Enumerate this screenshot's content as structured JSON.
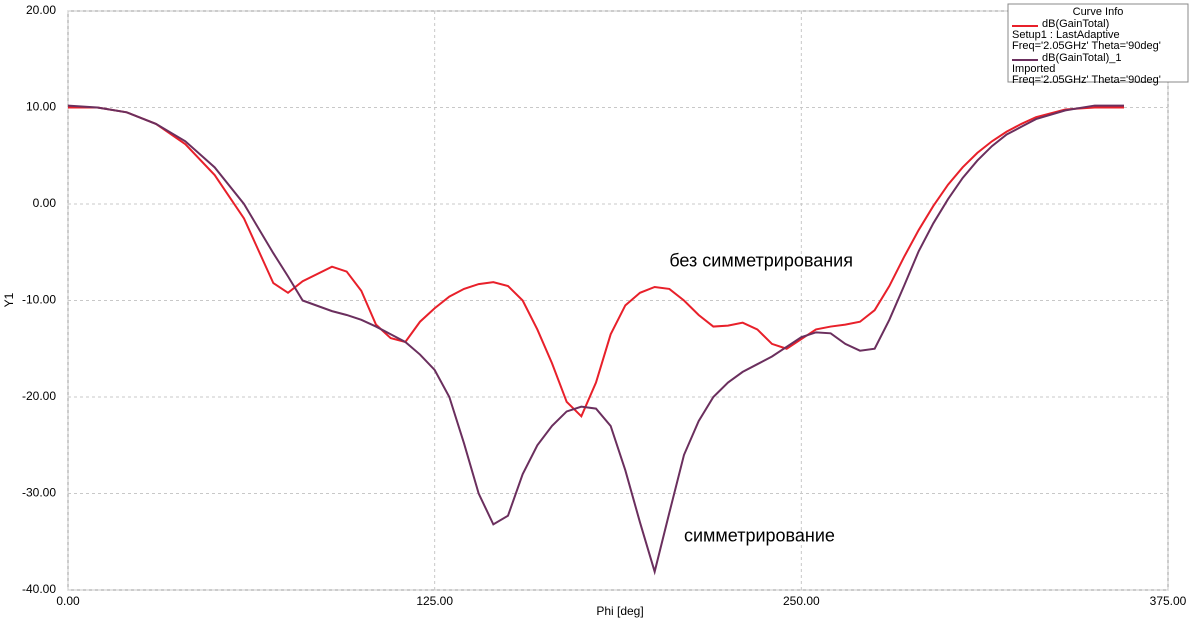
{
  "chart_data": {
    "type": "line",
    "xlabel": "Phi [deg]",
    "ylabel": "Y1",
    "x": [
      0,
      10,
      20,
      30,
      40,
      50,
      60,
      70,
      75,
      80,
      90,
      95,
      100,
      105,
      110,
      115,
      120,
      125,
      130,
      135,
      140,
      145,
      150,
      155,
      160,
      165,
      170,
      175,
      180,
      185,
      190,
      195,
      200,
      205,
      210,
      215,
      220,
      225,
      230,
      235,
      240,
      245,
      250,
      255,
      260,
      265,
      270,
      275,
      280,
      285,
      290,
      295,
      300,
      305,
      310,
      315,
      320,
      325,
      330,
      340,
      350,
      360
    ],
    "series": [
      {
        "name": "dB(GainTotal)",
        "details": [
          "Setup1 : LastAdaptive",
          "Freq='2.05GHz' Theta='90deg'"
        ],
        "color": "#e8202a",
        "values": [
          10,
          10,
          9.5,
          8.3,
          6.2,
          3.0,
          -1.5,
          -8.2,
          -9.2,
          -8.0,
          -6.5,
          -7.0,
          -9.0,
          -12.5,
          -13.9,
          -14.3,
          -12.2,
          -10.8,
          -9.6,
          -8.8,
          -8.3,
          -8.1,
          -8.5,
          -10,
          -13,
          -16.5,
          -20.5,
          -22,
          -18.5,
          -13.5,
          -10.5,
          -9.2,
          -8.6,
          -8.8,
          -10,
          -11.5,
          -12.7,
          -12.6,
          -12.3,
          -13,
          -14.5,
          -15,
          -14,
          -13,
          -12.7,
          -12.5,
          -12.2,
          -11,
          -8.5,
          -5.5,
          -2.7,
          -0.2,
          2,
          3.8,
          5.3,
          6.5,
          7.5,
          8.3,
          9,
          9.8,
          10,
          10
        ]
      },
      {
        "name": "dB(GainTotal)_1",
        "details": [
          "Imported",
          "Freq='2.05GHz' Theta='90deg'"
        ],
        "color": "#6b2f5e",
        "values": [
          10.2,
          10.0,
          9.5,
          8.3,
          6.5,
          3.8,
          0,
          -5.1,
          -7.5,
          -10.0,
          -11.1,
          -11.5,
          -12.0,
          -12.7,
          -13.5,
          -14.3,
          -15.6,
          -17.2,
          -20,
          -24.8,
          -30,
          -33.2,
          -32.3,
          -28,
          -25,
          -23,
          -21.5,
          -21,
          -21.2,
          -23,
          -27.6,
          -33,
          -38.1,
          -32,
          -26,
          -22.5,
          -20,
          -18.5,
          -17.4,
          -16.6,
          -15.8,
          -14.8,
          -13.8,
          -13.3,
          -13.4,
          -14.5,
          -15.2,
          -15,
          -12,
          -8.5,
          -4.9,
          -2,
          0.5,
          2.7,
          4.5,
          6,
          7.2,
          8,
          8.8,
          9.7,
          10.2,
          10.2
        ]
      }
    ],
    "legend_title": "Curve Info",
    "annotations": [
      {
        "text": "без симметрирования",
        "x": 205,
        "y": -6
      },
      {
        "text": "симметрирование",
        "x": 210,
        "y": -34.5
      }
    ],
    "xlim": [
      0,
      375
    ],
    "xticks": [
      {
        "value": 0,
        "label": "0.00"
      },
      {
        "value": 125,
        "label": "125.00"
      },
      {
        "value": 250,
        "label": "250.00"
      },
      {
        "value": 375,
        "label": "375.00"
      }
    ],
    "ylim": [
      -40,
      20
    ],
    "yticks": [
      {
        "value": 20,
        "label": "20.00"
      },
      {
        "value": 10,
        "label": "10.00"
      },
      {
        "value": 0,
        "label": "0.00"
      },
      {
        "value": -10,
        "label": "-10.00"
      },
      {
        "value": -20,
        "label": "-20.00"
      },
      {
        "value": -30,
        "label": "-30.00"
      },
      {
        "value": -40,
        "label": "-40.00"
      }
    ],
    "grid": true,
    "legend": "upper right"
  }
}
